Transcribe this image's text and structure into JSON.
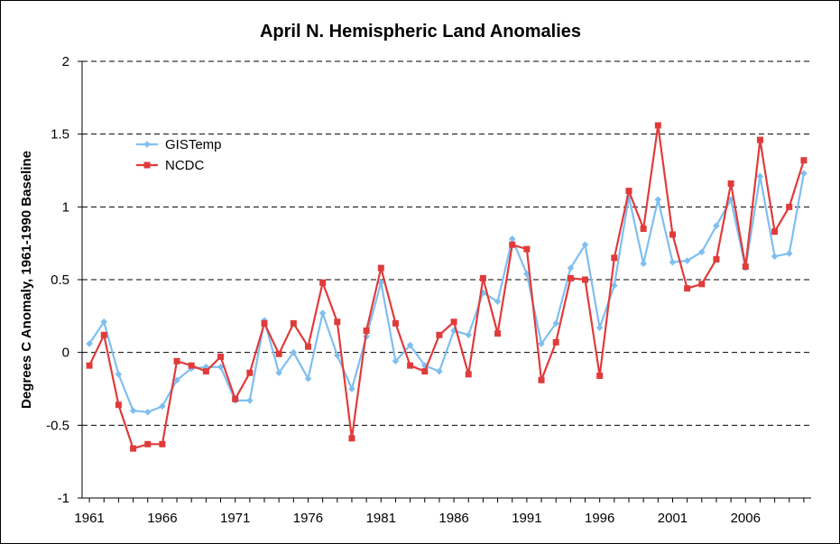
{
  "chart_data": {
    "type": "line",
    "title": "April N. Hemispheric Land Anomalies",
    "xlabel": "",
    "ylabel": "Degrees C Anomaly, 1961-1990 Baseline",
    "xlim": [
      1960.5,
      2010.5
    ],
    "ylim": [
      -1,
      2
    ],
    "y_ticks": [
      -1,
      -0.5,
      0,
      0.5,
      1,
      1.5,
      2
    ],
    "y_tick_labels": [
      "-1",
      "-0.5",
      "0",
      "0.5",
      "1",
      "1.5",
      "2"
    ],
    "x_ticks": [
      1961,
      1966,
      1971,
      1976,
      1981,
      1986,
      1991,
      1996,
      2001,
      2006
    ],
    "x_tick_labels": [
      "1961",
      "1966",
      "1971",
      "1976",
      "1981",
      "1986",
      "1991",
      "1996",
      "2001",
      "2006"
    ],
    "gridlines": "horizontal-dashed",
    "legend_position": "upper-left",
    "x": [
      1961,
      1962,
      1963,
      1964,
      1965,
      1966,
      1967,
      1968,
      1969,
      1970,
      1971,
      1972,
      1973,
      1974,
      1975,
      1976,
      1977,
      1978,
      1979,
      1980,
      1981,
      1982,
      1983,
      1984,
      1985,
      1986,
      1987,
      1988,
      1989,
      1990,
      1991,
      1992,
      1993,
      1994,
      1995,
      1996,
      1997,
      1998,
      1999,
      2000,
      2001,
      2002,
      2003,
      2004,
      2005,
      2006,
      2007,
      2008,
      2009,
      2010
    ],
    "series": [
      {
        "name": "GISTemp",
        "color": "#7fbff0",
        "marker": "diamond",
        "values": [
          0.06,
          0.21,
          -0.15,
          -0.4,
          -0.41,
          -0.37,
          -0.19,
          -0.11,
          -0.1,
          -0.1,
          -0.33,
          -0.33,
          0.22,
          -0.14,
          0.0,
          -0.18,
          0.27,
          -0.02,
          -0.25,
          0.11,
          0.48,
          -0.06,
          0.05,
          -0.09,
          -0.13,
          0.15,
          0.12,
          0.41,
          0.35,
          0.78,
          0.54,
          0.06,
          0.2,
          0.58,
          0.74,
          0.17,
          0.46,
          1.07,
          0.61,
          1.05,
          0.62,
          0.63,
          0.69,
          0.87,
          1.05,
          0.58,
          1.21,
          0.66,
          0.68,
          1.23
        ]
      },
      {
        "name": "NCDC",
        "color": "#e03b3b",
        "marker": "square",
        "values": [
          -0.09,
          0.12,
          -0.36,
          -0.66,
          -0.63,
          -0.63,
          -0.06,
          -0.09,
          -0.13,
          -0.03,
          -0.32,
          -0.14,
          0.2,
          -0.01,
          0.2,
          0.04,
          0.48,
          0.21,
          -0.59,
          0.15,
          0.58,
          0.2,
          -0.09,
          -0.13,
          0.12,
          0.21,
          -0.15,
          0.51,
          0.13,
          0.74,
          0.71,
          -0.19,
          0.07,
          0.51,
          0.5,
          -0.16,
          0.65,
          1.11,
          0.85,
          1.56,
          0.81,
          0.44,
          0.47,
          0.64,
          1.16,
          0.59,
          1.46,
          0.83,
          1.0,
          1.32
        ]
      }
    ]
  }
}
